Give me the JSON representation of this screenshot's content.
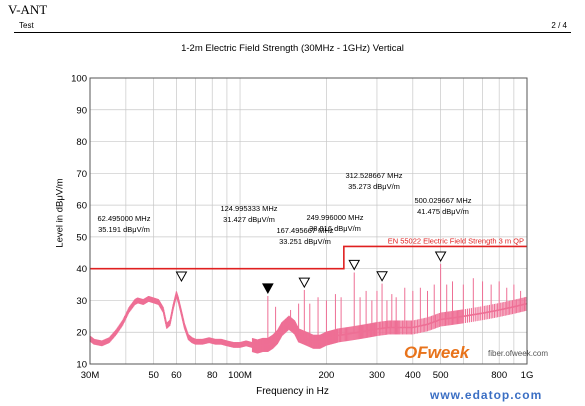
{
  "header": {
    "left_label": "V-ANT",
    "sub_left": "Test",
    "page_number": "2 / 4"
  },
  "watermark": {
    "brand": "OFweek",
    "url": "fiber.ofweek.com",
    "site": "www.edatop.com"
  },
  "colors": {
    "trace": "#ee6f95",
    "limit": "#e02020",
    "grid": "#c8c8c8",
    "frame": "#555555"
  },
  "chart_data": {
    "type": "line",
    "title": "1-2m  Electric Field Strength (30MHz - 1GHz)  Vertical",
    "xlabel": "Frequency in Hz",
    "ylabel": "Level in dBμV/m",
    "x_scale": "log",
    "xlim": [
      30,
      1000
    ],
    "ylim": [
      10,
      100
    ],
    "grid": true,
    "x_ticks": [
      {
        "value": 30,
        "label": "30M"
      },
      {
        "value": 50,
        "label": "50"
      },
      {
        "value": 60,
        "label": "60"
      },
      {
        "value": 80,
        "label": "80"
      },
      {
        "value": 100,
        "label": "100M"
      },
      {
        "value": 200,
        "label": "200"
      },
      {
        "value": 300,
        "label": "300"
      },
      {
        "value": 400,
        "label": "400"
      },
      {
        "value": 500,
        "label": "500"
      },
      {
        "value": 800,
        "label": "800"
      },
      {
        "value": 1000,
        "label": "1G"
      }
    ],
    "x_minor_grid": [
      40,
      70,
      90,
      600,
      700,
      900
    ],
    "y_ticks": [
      10,
      20,
      30,
      40,
      50,
      60,
      70,
      80,
      90,
      100
    ],
    "limit_line": {
      "name": "EN 55022 Electric Field Strength 3 m QP",
      "segments": [
        {
          "x": [
            30,
            230
          ],
          "y": 40
        },
        {
          "x": [
            230,
            1000
          ],
          "y": 47
        }
      ]
    },
    "series": [
      {
        "x": [
          30,
          31,
          33,
          35,
          37,
          39,
          41,
          43,
          44,
          46,
          48,
          50,
          52,
          54,
          55.5,
          57,
          58.5,
          60,
          61,
          62.5,
          64,
          66,
          68,
          70,
          74,
          78,
          82,
          86,
          90,
          95,
          100,
          105,
          110,
          115,
          120,
          125,
          130,
          135,
          140,
          148,
          155,
          160,
          170,
          180,
          190,
          200,
          210,
          220,
          240,
          260,
          280,
          300,
          330,
          360,
          400,
          450,
          500,
          550,
          600,
          700,
          800,
          900,
          1000
        ],
        "y": [
          18,
          17,
          16.5,
          17.5,
          20,
          23,
          27,
          29.5,
          30,
          29.5,
          30.5,
          30,
          29.5,
          27,
          22,
          23,
          28,
          32,
          30,
          26,
          22,
          18.5,
          17.5,
          17,
          17,
          17.5,
          17,
          17,
          16.5,
          16,
          16,
          16.5,
          16,
          15.5,
          16,
          16,
          17,
          18.5,
          21,
          23,
          21.5,
          19,
          18,
          17,
          17,
          18,
          18.5,
          19,
          19.5,
          20,
          20.5,
          21,
          21.5,
          21.5,
          21.5,
          22.5,
          24,
          24.5,
          25,
          26,
          27,
          28,
          29
        ]
      }
    ],
    "spikes": [
      {
        "x": 125,
        "y": 31.4
      },
      {
        "x": 133,
        "y": 28
      },
      {
        "x": 150,
        "y": 27
      },
      {
        "x": 160,
        "y": 29
      },
      {
        "x": 167.5,
        "y": 33.3
      },
      {
        "x": 175,
        "y": 29
      },
      {
        "x": 187,
        "y": 31
      },
      {
        "x": 200,
        "y": 30
      },
      {
        "x": 215,
        "y": 32
      },
      {
        "x": 225,
        "y": 31
      },
      {
        "x": 250,
        "y": 38.8
      },
      {
        "x": 262,
        "y": 31
      },
      {
        "x": 275,
        "y": 33
      },
      {
        "x": 288,
        "y": 30
      },
      {
        "x": 300,
        "y": 33
      },
      {
        "x": 312.5,
        "y": 35.3
      },
      {
        "x": 325,
        "y": 30
      },
      {
        "x": 338,
        "y": 32
      },
      {
        "x": 350,
        "y": 31
      },
      {
        "x": 375,
        "y": 34
      },
      {
        "x": 400,
        "y": 33
      },
      {
        "x": 425,
        "y": 34
      },
      {
        "x": 450,
        "y": 33
      },
      {
        "x": 475,
        "y": 35
      },
      {
        "x": 500,
        "y": 41.5
      },
      {
        "x": 525,
        "y": 35
      },
      {
        "x": 550,
        "y": 36
      },
      {
        "x": 600,
        "y": 35
      },
      {
        "x": 650,
        "y": 37
      },
      {
        "x": 700,
        "y": 36
      },
      {
        "x": 750,
        "y": 35
      },
      {
        "x": 800,
        "y": 36
      },
      {
        "x": 850,
        "y": 34
      },
      {
        "x": 900,
        "y": 35
      },
      {
        "x": 950,
        "y": 33
      }
    ],
    "markers": [
      {
        "x": 62.495,
        "y": 35.191,
        "freq_label": "62.495000 MHz",
        "level_label": "35.191 dBμV/m",
        "filled": false,
        "label_anchor": "above"
      },
      {
        "x": 124.995333,
        "y": 31.427,
        "freq_label": "124.995333 MHz",
        "level_label": "31.427 dBμV/m",
        "filled": true,
        "label_anchor": "above"
      },
      {
        "x": 167.495667,
        "y": 33.251,
        "freq_label": "167.495667 MHz",
        "level_label": "33.251 dBμV/m",
        "filled": false,
        "label_anchor": "above"
      },
      {
        "x": 249.996,
        "y": 38.816,
        "freq_label": "249.996000 MHz",
        "level_label": "38.816 dBμV/m",
        "filled": false,
        "label_anchor": "above"
      },
      {
        "x": 312.528667,
        "y": 35.273,
        "freq_label": "312.528667 MHz",
        "level_label": "35.273 dBμV/m",
        "filled": false,
        "label_anchor": "above"
      },
      {
        "x": 500.029667,
        "y": 41.475,
        "freq_label": "500.029667 MHz",
        "level_label": "41.475 dBμV/m",
        "filled": false,
        "label_anchor": "above"
      }
    ]
  }
}
